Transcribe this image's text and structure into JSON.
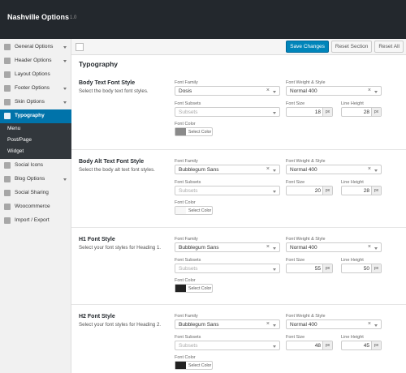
{
  "header": {
    "title": "Nashville Options",
    "version": "1.0"
  },
  "sidebar": {
    "items": [
      {
        "label": "General Options"
      },
      {
        "label": "Header Options"
      },
      {
        "label": "Layout Options"
      },
      {
        "label": "Footer Options"
      },
      {
        "label": "Skin Options"
      },
      {
        "label": "Typography",
        "active": true,
        "submenu": [
          "Menu",
          "Post/Page",
          "Widget"
        ]
      },
      {
        "label": "Social Icons"
      },
      {
        "label": "Blog Options"
      },
      {
        "label": "Social Sharing"
      },
      {
        "label": "Woocommerce"
      },
      {
        "label": "Import / Export"
      }
    ]
  },
  "toolbar": {
    "buttons": [
      "Save Changes",
      "Reset Section",
      "Reset All"
    ]
  },
  "page_title": "Typography",
  "sections": [
    {
      "title": "Body Text Font Style",
      "description": "Select the body text font styles.",
      "fields": {
        "font_family": {
          "label": "Font Family",
          "value": "Dosis"
        },
        "font_weight": {
          "label": "Font Weight & Style",
          "value": "Normal 400"
        },
        "font_subsets": {
          "label": "Font Subsets",
          "placeholder": "Subsets"
        },
        "font_size": {
          "label": "Font Size",
          "value": 18,
          "unit": "px"
        },
        "line_height": {
          "label": "Line Height",
          "value": 28,
          "unit": "px"
        },
        "font_color": {
          "label": "Font Color",
          "button": "Select Color",
          "color": "#8a8a8a"
        }
      }
    },
    {
      "title": "Body Alt Text Font Style",
      "description": "Select the body alt text font styles.",
      "fields": {
        "font_family": {
          "label": "Font Family",
          "value": "Bubblegum Sans"
        },
        "font_weight": {
          "label": "Font Weight & Style",
          "value": "Normal 400"
        },
        "font_subsets": {
          "label": "Font Subsets",
          "placeholder": "Subsets"
        },
        "font_size": {
          "label": "Font Size",
          "value": 20,
          "unit": "px"
        },
        "line_height": {
          "label": "Line Height",
          "value": 28,
          "unit": "px"
        },
        "font_color": {
          "label": "Font Color",
          "button": "Select Color",
          "color": "#f7f7f7"
        }
      }
    },
    {
      "title": "H1 Font Style",
      "description": "Select your font styles for Heading 1.",
      "fields": {
        "font_family": {
          "label": "Font Family",
          "value": "Bubblegum Sans"
        },
        "font_weight": {
          "label": "Font Weight & Style",
          "value": "Normal 400"
        },
        "font_subsets": {
          "label": "Font Subsets",
          "placeholder": "Subsets"
        },
        "font_size": {
          "label": "Font Size",
          "value": 55,
          "unit": "px"
        },
        "line_height": {
          "label": "Line Height",
          "value": 50,
          "unit": "px"
        },
        "font_color": {
          "label": "Font Color",
          "button": "Select Color",
          "color": "#222222"
        }
      }
    },
    {
      "title": "H2 Font Style",
      "description": "Select your font styles for Heading 2.",
      "fields": {
        "font_family": {
          "label": "Font Family",
          "value": "Bubblegum Sans"
        },
        "font_weight": {
          "label": "Font Weight & Style",
          "value": "Normal 400"
        },
        "font_subsets": {
          "label": "Font Subsets",
          "placeholder": "Subsets"
        },
        "font_size": {
          "label": "Font Size",
          "value": 48,
          "unit": "px"
        },
        "line_height": {
          "label": "Line Height",
          "value": 45,
          "unit": "px"
        },
        "font_color": {
          "label": "Font Color",
          "button": "Select Color",
          "color": "#222222"
        }
      }
    }
  ]
}
